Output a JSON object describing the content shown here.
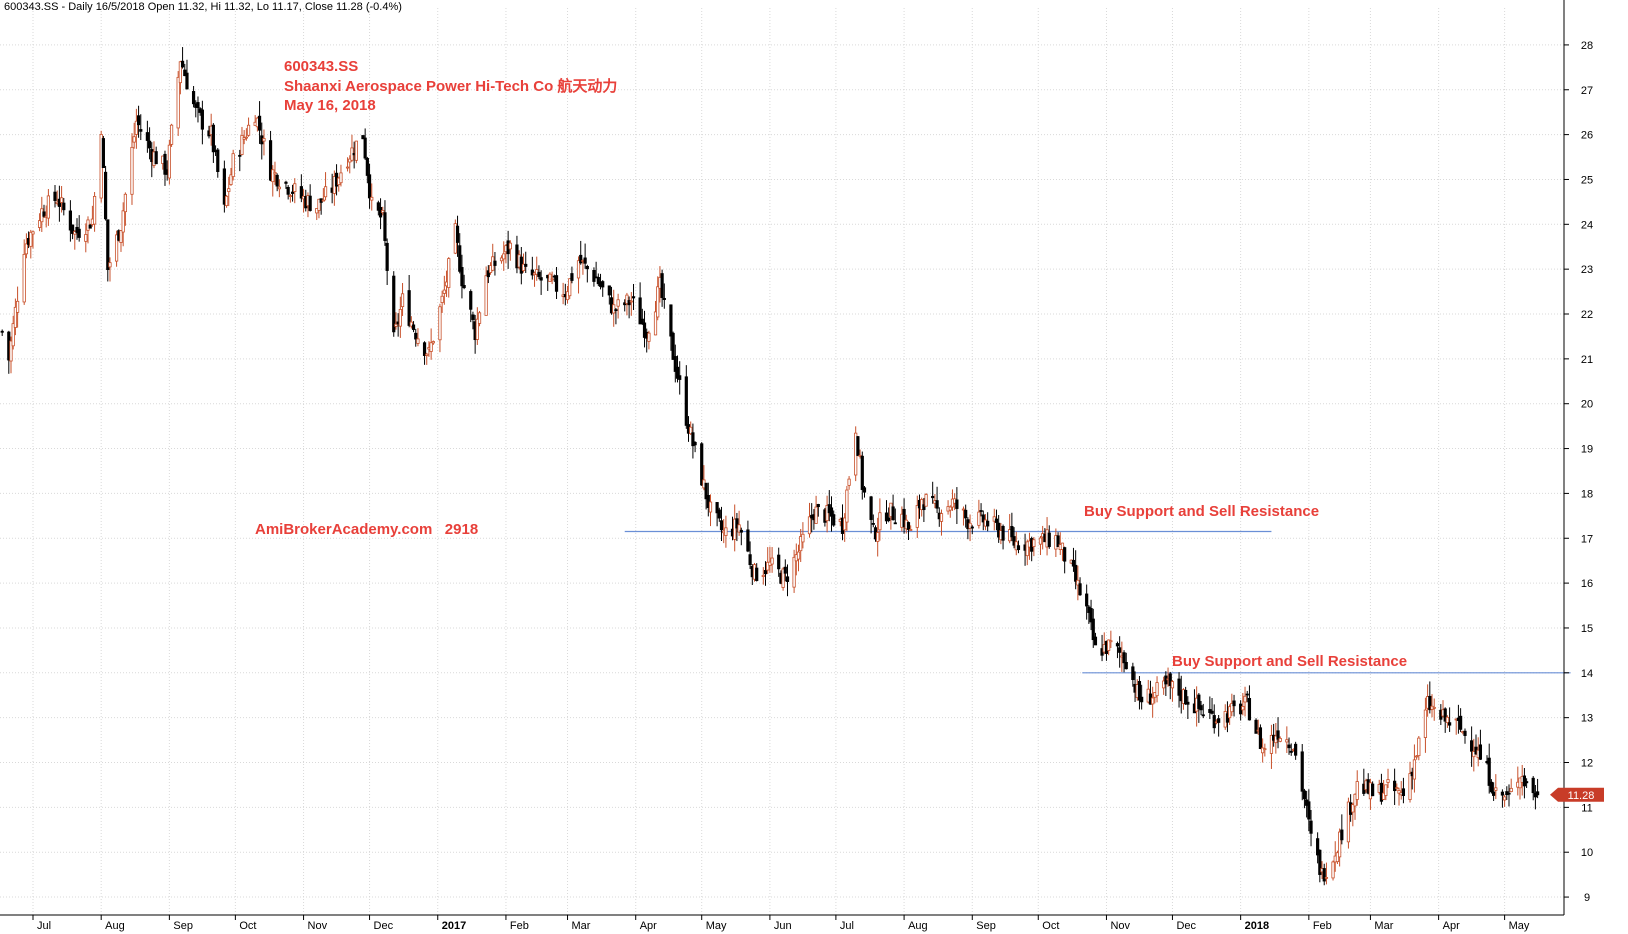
{
  "header": "600343.SS - Daily 16/5/2018 Open 11.32, Hi 11.32, Lo 11.17, Close 11.28 (-0.4%)",
  "annotations": {
    "symbol": "600343.SS",
    "company": "Shaanxi Aerospace Power Hi-Tech Co 航天动力",
    "date": "May 16, 2018",
    "watermark": "AmiBrokerAcademy.com   2918",
    "sr1": "Buy Support and Sell Resistance",
    "sr2": "Buy Support and Sell Resistance"
  },
  "colors": {
    "up": "#c8502a",
    "down": "#000000",
    "grid": "#d9d9d9",
    "hline": "#6a8fd6",
    "text_red": "#e8403a",
    "last_label_bg": "#c83c28"
  },
  "chart_data": {
    "type": "candlestick",
    "title": "600343.SS - Daily 16/5/2018 Open 11.32, Hi 11.32, Lo 11.17, Close 11.28 (-0.4%)",
    "ylim": [
      8.6,
      28.6
    ],
    "yticks": [
      9,
      10,
      11,
      12,
      13,
      14,
      15,
      16,
      17,
      18,
      19,
      20,
      21,
      22,
      23,
      24,
      25,
      26,
      27,
      28
    ],
    "grid": true,
    "x_range": [
      "2016-06-16",
      "2018-05-28"
    ],
    "x_ticks": [
      {
        "date": "2016-07-01",
        "label": "Jul",
        "bold": false
      },
      {
        "date": "2016-08-01",
        "label": "Aug",
        "bold": false
      },
      {
        "date": "2016-09-01",
        "label": "Sep",
        "bold": false
      },
      {
        "date": "2016-10-01",
        "label": "Oct",
        "bold": false
      },
      {
        "date": "2016-11-01",
        "label": "Nov",
        "bold": false
      },
      {
        "date": "2016-12-01",
        "label": "Dec",
        "bold": false
      },
      {
        "date": "2017-01-01",
        "label": "2017",
        "bold": true
      },
      {
        "date": "2017-02-01",
        "label": "Feb",
        "bold": false
      },
      {
        "date": "2017-03-01",
        "label": "Mar",
        "bold": false
      },
      {
        "date": "2017-04-01",
        "label": "Apr",
        "bold": false
      },
      {
        "date": "2017-05-01",
        "label": "May",
        "bold": false
      },
      {
        "date": "2017-06-01",
        "label": "Jun",
        "bold": false
      },
      {
        "date": "2017-07-01",
        "label": "Jul",
        "bold": false
      },
      {
        "date": "2017-08-01",
        "label": "Aug",
        "bold": false
      },
      {
        "date": "2017-09-01",
        "label": "Sep",
        "bold": false
      },
      {
        "date": "2017-10-01",
        "label": "Oct",
        "bold": false
      },
      {
        "date": "2017-11-01",
        "label": "Nov",
        "bold": false
      },
      {
        "date": "2017-12-01",
        "label": "Dec",
        "bold": false
      },
      {
        "date": "2018-01-01",
        "label": "2018",
        "bold": true
      },
      {
        "date": "2018-02-01",
        "label": "Feb",
        "bold": false
      },
      {
        "date": "2018-03-01",
        "label": "Mar",
        "bold": false
      },
      {
        "date": "2018-04-01",
        "label": "Apr",
        "bold": false
      },
      {
        "date": "2018-05-01",
        "label": "May",
        "bold": false
      }
    ],
    "close_path": [
      [
        "2016-06-17",
        21.6
      ],
      [
        "2016-06-20",
        21.0
      ],
      [
        "2016-06-27",
        23.5
      ],
      [
        "2016-07-05",
        24.3
      ],
      [
        "2016-07-12",
        24.6
      ],
      [
        "2016-07-20",
        23.8
      ],
      [
        "2016-07-28",
        24.1
      ],
      [
        "2016-08-01",
        26.2
      ],
      [
        "2016-08-04",
        23.0
      ],
      [
        "2016-08-10",
        24.0
      ],
      [
        "2016-08-17",
        26.3
      ],
      [
        "2016-08-24",
        25.6
      ],
      [
        "2016-08-31",
        25.2
      ],
      [
        "2016-09-06",
        27.7
      ],
      [
        "2016-09-13",
        26.5
      ],
      [
        "2016-09-20",
        26.0
      ],
      [
        "2016-09-26",
        24.3
      ],
      [
        "2016-09-30",
        25.4
      ],
      [
        "2016-10-10",
        26.5
      ],
      [
        "2016-10-17",
        25.2
      ],
      [
        "2016-10-24",
        24.9
      ],
      [
        "2016-10-31",
        24.6
      ],
      [
        "2016-11-07",
        24.4
      ],
      [
        "2016-11-14",
        24.8
      ],
      [
        "2016-11-21",
        25.5
      ],
      [
        "2016-11-28",
        26.0
      ],
      [
        "2016-12-02",
        24.4
      ],
      [
        "2016-12-07",
        24.1
      ],
      [
        "2016-12-12",
        21.4
      ],
      [
        "2016-12-16",
        22.3
      ],
      [
        "2016-12-22",
        21.6
      ],
      [
        "2016-12-28",
        21.1
      ],
      [
        "2017-01-04",
        22.5
      ],
      [
        "2017-01-09",
        23.8
      ],
      [
        "2017-01-12",
        22.8
      ],
      [
        "2017-01-18",
        21.6
      ],
      [
        "2017-01-23",
        22.9
      ],
      [
        "2017-02-03",
        23.5
      ],
      [
        "2017-02-10",
        22.9
      ],
      [
        "2017-02-20",
        22.7
      ],
      [
        "2017-02-28",
        22.5
      ],
      [
        "2017-03-06",
        23.2
      ],
      [
        "2017-03-14",
        22.8
      ],
      [
        "2017-03-22",
        22.1
      ],
      [
        "2017-03-30",
        22.3
      ],
      [
        "2017-04-06",
        21.6
      ],
      [
        "2017-04-12",
        22.6
      ],
      [
        "2017-04-18",
        21.1
      ],
      [
        "2017-04-24",
        19.7
      ],
      [
        "2017-04-28",
        18.9
      ],
      [
        "2017-05-05",
        17.6
      ],
      [
        "2017-05-11",
        17.1
      ],
      [
        "2017-05-18",
        17.3
      ],
      [
        "2017-05-25",
        16.2
      ],
      [
        "2017-06-01",
        16.4
      ],
      [
        "2017-06-08",
        16.1
      ],
      [
        "2017-06-14",
        16.7
      ],
      [
        "2017-06-21",
        17.6
      ],
      [
        "2017-06-28",
        17.5
      ],
      [
        "2017-07-04",
        17.3
      ],
      [
        "2017-07-10",
        19.5
      ],
      [
        "2017-07-13",
        18.2
      ],
      [
        "2017-07-18",
        17.1
      ],
      [
        "2017-07-24",
        17.6
      ],
      [
        "2017-07-31",
        17.5
      ],
      [
        "2017-08-04",
        17.1
      ],
      [
        "2017-08-09",
        17.9
      ],
      [
        "2017-08-16",
        17.6
      ],
      [
        "2017-08-23",
        17.8
      ],
      [
        "2017-08-30",
        17.4
      ],
      [
        "2017-09-06",
        17.4
      ],
      [
        "2017-09-13",
        17.2
      ],
      [
        "2017-09-20",
        16.9
      ],
      [
        "2017-09-27",
        16.9
      ],
      [
        "2017-10-09",
        17.0
      ],
      [
        "2017-10-16",
        16.3
      ],
      [
        "2017-10-23",
        15.4
      ],
      [
        "2017-10-27",
        14.5
      ],
      [
        "2017-11-03",
        14.6
      ],
      [
        "2017-11-10",
        14.3
      ],
      [
        "2017-11-16",
        13.4
      ],
      [
        "2017-11-22",
        13.5
      ],
      [
        "2017-11-29",
        13.7
      ],
      [
        "2017-12-06",
        13.5
      ],
      [
        "2017-12-13",
        13.2
      ],
      [
        "2017-12-20",
        13.0
      ],
      [
        "2017-12-27",
        13.1
      ],
      [
        "2018-01-04",
        13.3
      ],
      [
        "2018-01-11",
        12.3
      ],
      [
        "2018-01-18",
        12.7
      ],
      [
        "2018-01-25",
        12.4
      ],
      [
        "2018-01-30",
        11.2
      ],
      [
        "2018-02-02",
        10.3
      ],
      [
        "2018-02-07",
        9.5
      ],
      [
        "2018-02-12",
        9.9
      ],
      [
        "2018-02-23",
        11.5
      ],
      [
        "2018-03-02",
        11.3
      ],
      [
        "2018-03-09",
        11.4
      ],
      [
        "2018-03-16",
        11.3
      ],
      [
        "2018-03-22",
        12.2
      ],
      [
        "2018-03-27",
        13.3
      ],
      [
        "2018-04-02",
        13.0
      ],
      [
        "2018-04-10",
        12.8
      ],
      [
        "2018-04-17",
        12.4
      ],
      [
        "2018-04-24",
        11.7
      ],
      [
        "2018-04-27",
        11.3
      ],
      [
        "2018-05-03",
        11.2
      ],
      [
        "2018-05-08",
        11.8
      ],
      [
        "2018-05-11",
        11.5
      ],
      [
        "2018-05-16",
        11.28
      ]
    ],
    "support_resistance": [
      {
        "label": "Buy Support and Sell Resistance",
        "price": 17.15,
        "start": "2017-03-27",
        "end": "2018-01-15"
      },
      {
        "label": "Buy Support and Sell Resistance",
        "price": 14.0,
        "start": "2017-10-21",
        "end": "2018-05-31"
      }
    ],
    "last_close_label": "11.28"
  }
}
